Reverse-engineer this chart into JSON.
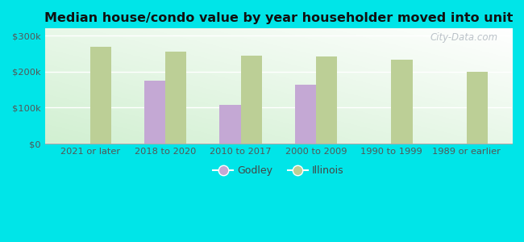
{
  "title": "Median house/condo value by year householder moved into unit",
  "categories": [
    "2021 or later",
    "2018 to 2020",
    "2010 to 2017",
    "2000 to 2009",
    "1990 to 1999",
    "1989 or earlier"
  ],
  "godley_values": [
    null,
    175000,
    108000,
    163000,
    null,
    null
  ],
  "illinois_values": [
    270000,
    255000,
    245000,
    243000,
    233000,
    200000
  ],
  "godley_color": "#c4a8d4",
  "illinois_color": "#bccf96",
  "outer_background": "#00e5e8",
  "ylim": [
    0,
    320000
  ],
  "yticks": [
    0,
    100000,
    200000,
    300000
  ],
  "ytick_labels": [
    "$0",
    "$100k",
    "$200k",
    "$300k"
  ],
  "bar_width": 0.28,
  "legend_godley": "Godley",
  "legend_illinois": "Illinois",
  "watermark": "City-Data.com"
}
